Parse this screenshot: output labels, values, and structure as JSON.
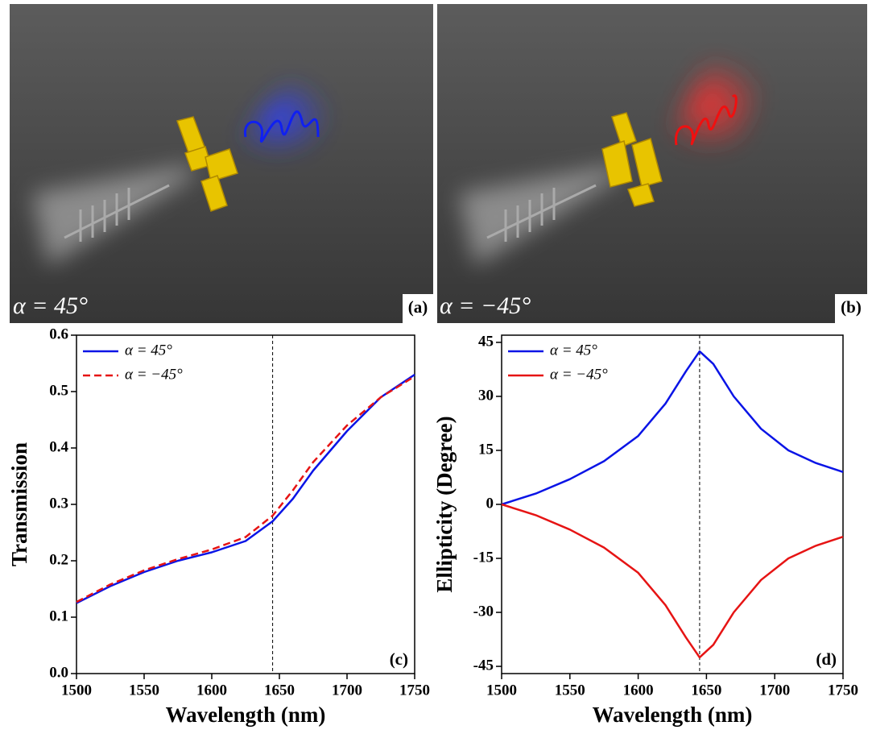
{
  "images": [
    {
      "caption": "α = 45°",
      "label": "(a)"
    },
    {
      "caption": "α = −45°",
      "label": "(b)"
    }
  ],
  "chart_data": [
    {
      "type": "line",
      "panel_label": "(c)",
      "x_label": "Wavelength (nm)",
      "y_label": "Transmission",
      "x": [
        1500,
        1525,
        1550,
        1575,
        1600,
        1625,
        1645,
        1660,
        1675,
        1700,
        1725,
        1750
      ],
      "series": [
        {
          "name": "α = 45°",
          "color": "#0a14e6",
          "dash": false,
          "values": [
            0.125,
            0.155,
            0.18,
            0.2,
            0.215,
            0.235,
            0.27,
            0.31,
            0.36,
            0.43,
            0.49,
            0.53
          ]
        },
        {
          "name": "α = −45°",
          "color": "#e61414",
          "dash": true,
          "values": [
            0.127,
            0.158,
            0.183,
            0.203,
            0.22,
            0.242,
            0.28,
            0.325,
            0.375,
            0.44,
            0.49,
            0.527
          ]
        }
      ],
      "xlim": [
        1500,
        1750
      ],
      "xticks": [
        1500,
        1550,
        1600,
        1650,
        1700,
        1750
      ],
      "ylim": [
        0,
        0.6
      ],
      "yticks": [
        {
          "value": 0,
          "label": "0.0"
        },
        0.1,
        0.2,
        0.3,
        0.4,
        0.5,
        0.6
      ],
      "vline": 1645,
      "legend": "top-left"
    },
    {
      "type": "line",
      "panel_label": "(d)",
      "x_label": "Wavelength (nm)",
      "y_label": "Ellipticity (Degree)",
      "x": [
        1500,
        1525,
        1550,
        1575,
        1600,
        1620,
        1635,
        1645,
        1655,
        1670,
        1690,
        1710,
        1730,
        1750
      ],
      "series": [
        {
          "name": "α = 45°",
          "color": "#0a14e6",
          "dash": false,
          "values": [
            0,
            3,
            7,
            12,
            19,
            28,
            37,
            42.5,
            39,
            30,
            21,
            15,
            11.5,
            9
          ]
        },
        {
          "name": "α = −45°",
          "color": "#e61414",
          "dash": false,
          "values": [
            0,
            -3,
            -7,
            -12,
            -19,
            -28,
            -37,
            -42.5,
            -39,
            -30,
            -21,
            -15,
            -11.5,
            -9
          ]
        }
      ],
      "xlim": [
        1500,
        1750
      ],
      "xticks": [
        1500,
        1550,
        1600,
        1650,
        1700,
        1750
      ],
      "ylim": [
        -47,
        47
      ],
      "yticks": [
        -45,
        -30,
        -15,
        0,
        15,
        30,
        45
      ],
      "vline": 1645,
      "legend": "top-left"
    }
  ]
}
